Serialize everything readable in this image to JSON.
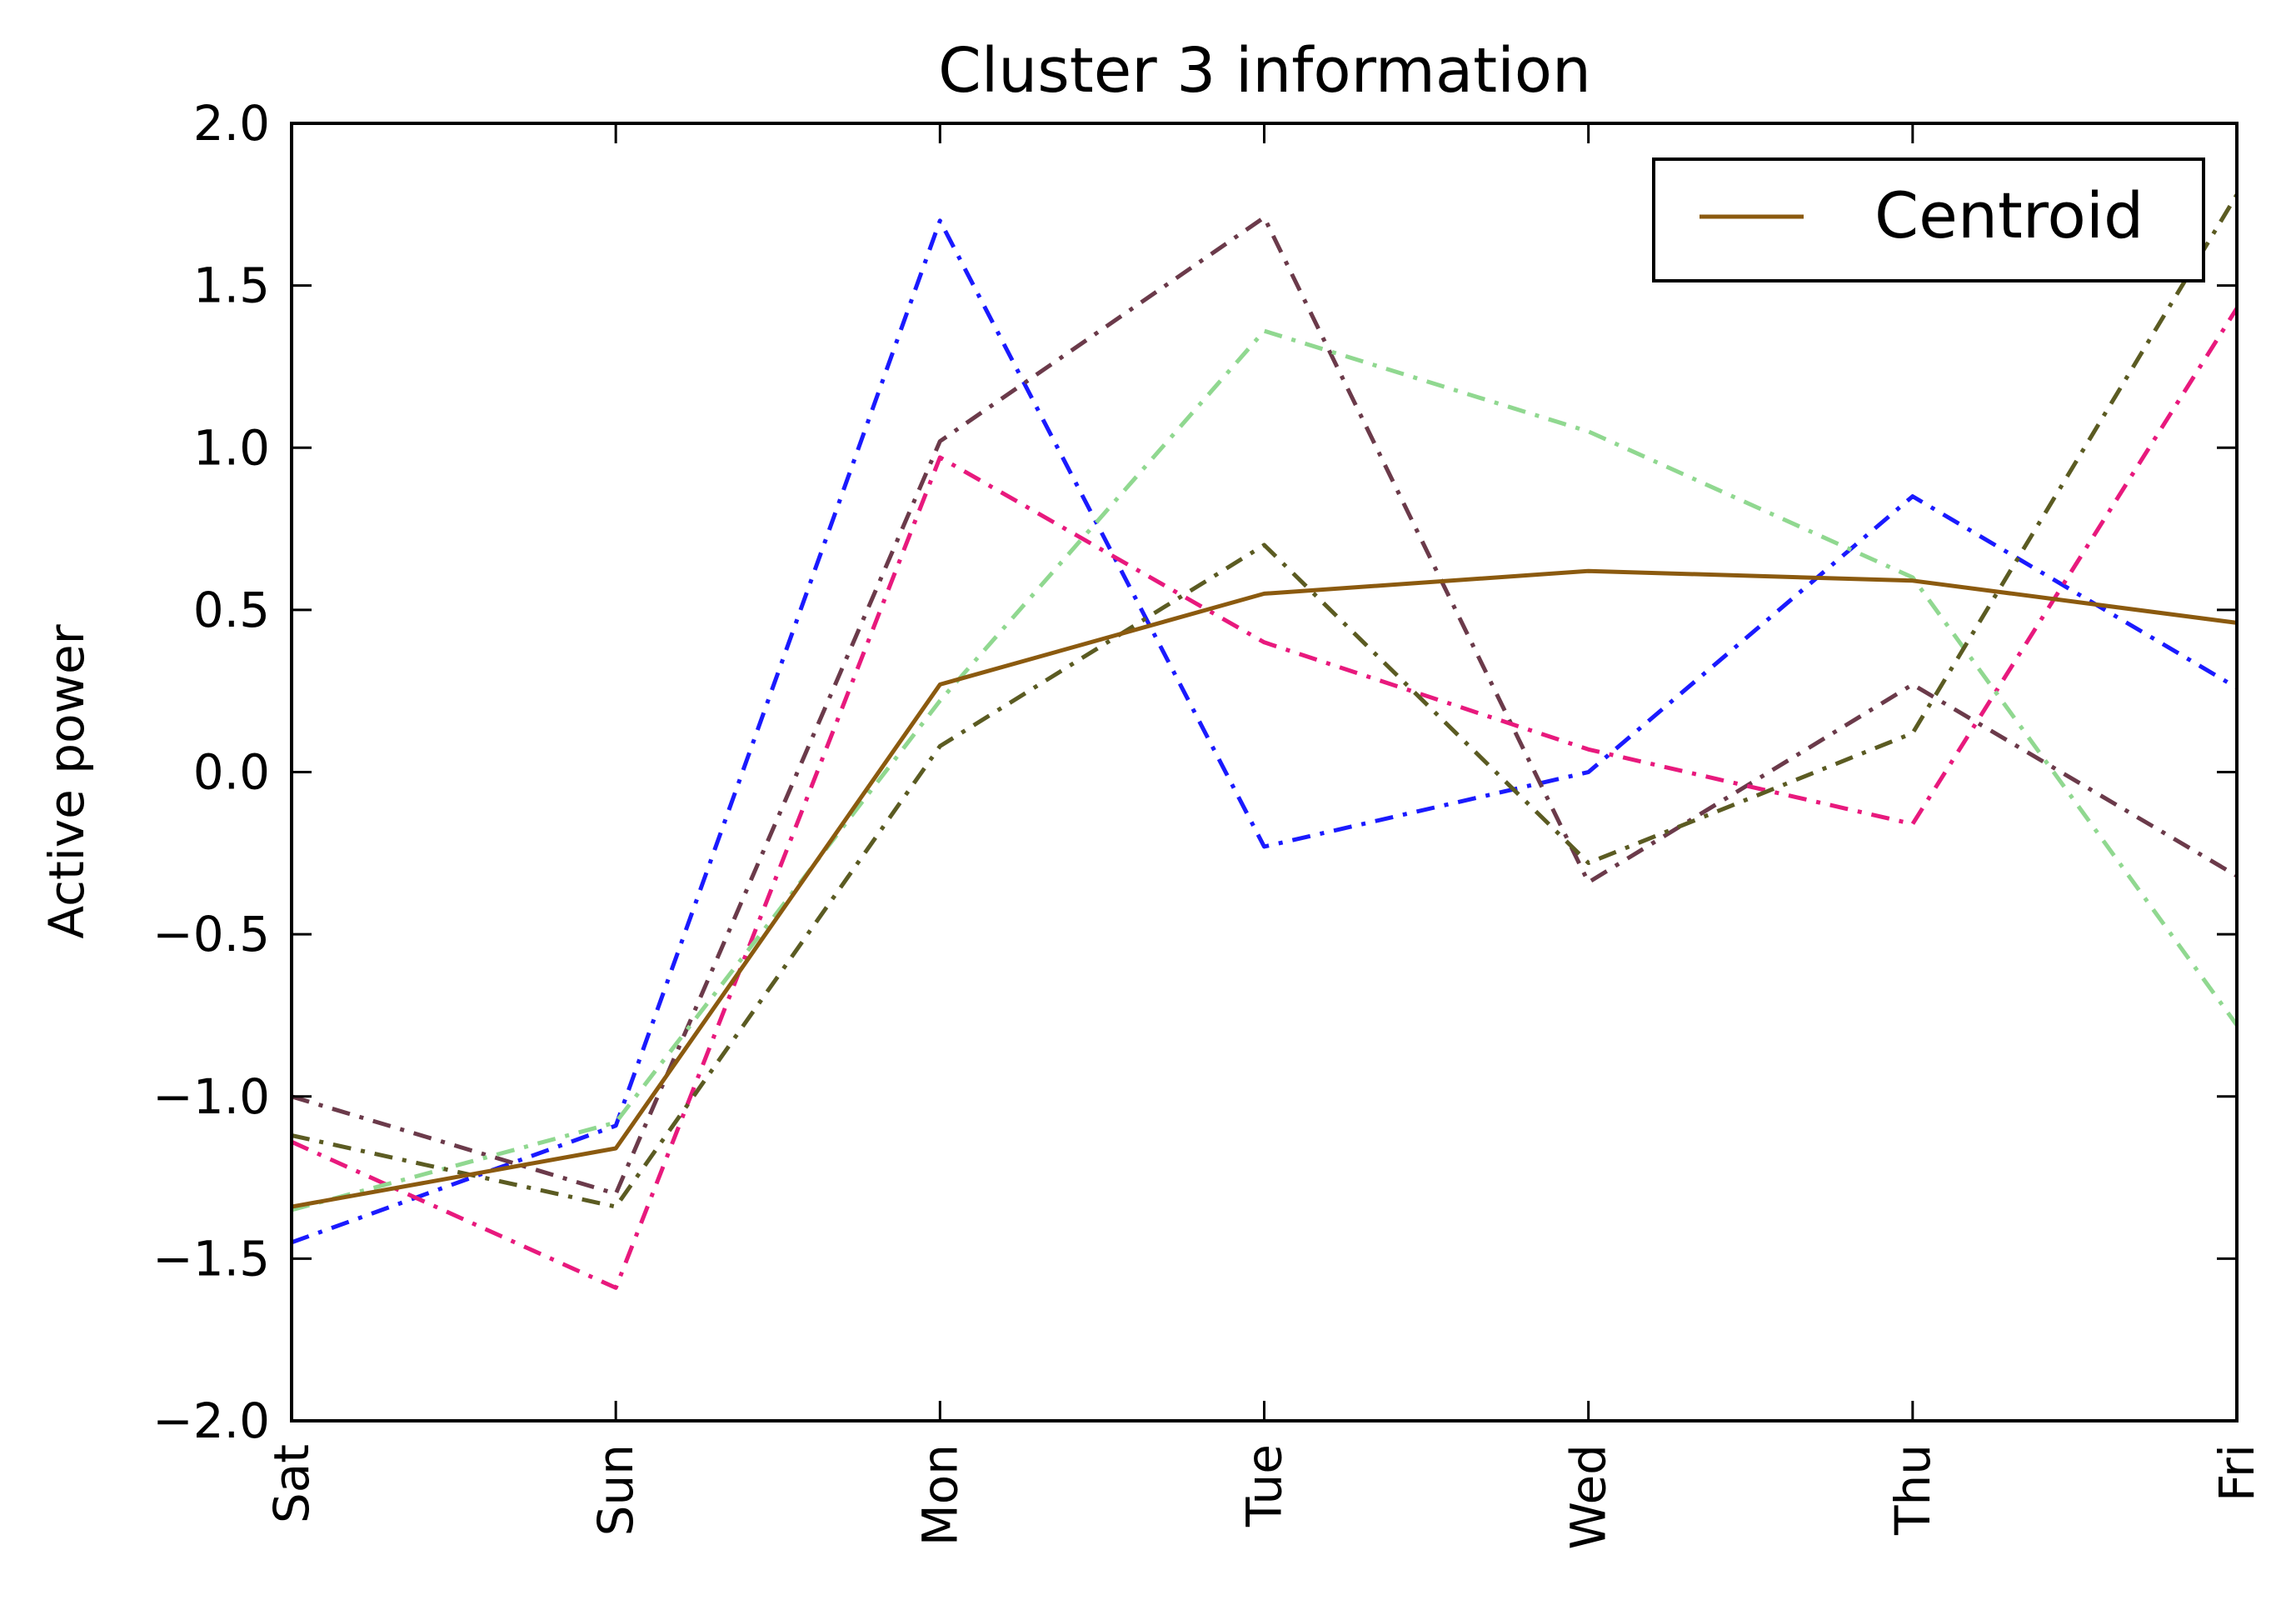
{
  "chart_data": {
    "type": "line",
    "title": "Cluster 3 information",
    "xlabel": "",
    "ylabel": "Active power",
    "categories": [
      "Sat",
      "Sun",
      "Mon",
      "Tue",
      "Wed",
      "Thu",
      "Fri"
    ],
    "yticks": [
      "2.0",
      "1.5",
      "1.0",
      "0.5",
      "0.0",
      "−0.5",
      "−1.0",
      "−1.5",
      "−2.0"
    ],
    "ylim": [
      -2.0,
      2.0
    ],
    "grid": false,
    "legend": {
      "position": "top-right",
      "entries": [
        "Centroid"
      ]
    },
    "series": [
      {
        "name": "Centroid",
        "color": "#8b5a0f",
        "style": "solid",
        "values": [
          -1.34,
          -1.16,
          0.27,
          0.55,
          0.62,
          0.59,
          0.46
        ]
      },
      {
        "color": "#1a1aff",
        "style": "dashdot",
        "values": [
          -1.45,
          -1.09,
          1.7,
          -0.23,
          0.0,
          0.85,
          0.26
        ]
      },
      {
        "color": "#6b3a4a",
        "style": "dashdot",
        "values": [
          -1.0,
          -1.3,
          1.02,
          1.71,
          -0.34,
          0.27,
          -0.32
        ]
      },
      {
        "color": "#e8197d",
        "style": "dashdot",
        "values": [
          -1.14,
          -1.59,
          0.97,
          0.4,
          0.07,
          -0.16,
          1.43
        ]
      },
      {
        "color": "#90d890",
        "style": "dashdot",
        "values": [
          -1.35,
          -1.08,
          0.22,
          1.36,
          1.05,
          0.6,
          -0.78
        ]
      },
      {
        "color": "#5b5b22",
        "style": "dashdot",
        "values": [
          -1.12,
          -1.34,
          0.08,
          0.7,
          -0.28,
          0.12,
          1.78
        ]
      }
    ]
  }
}
